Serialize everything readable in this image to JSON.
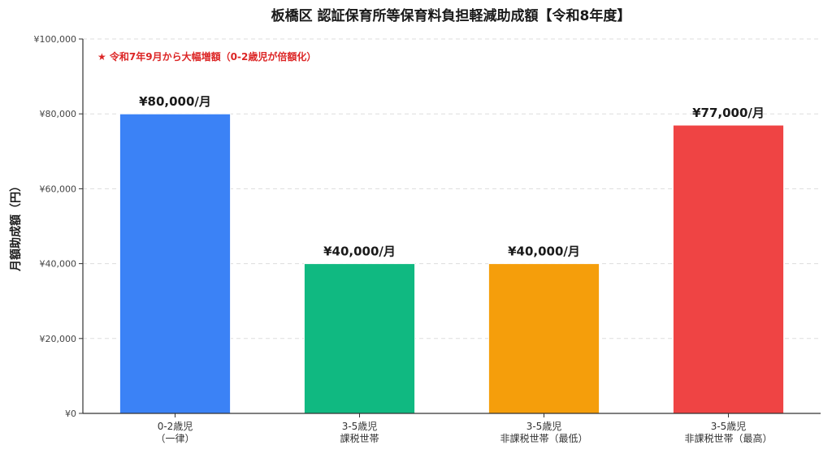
{
  "chart_data": {
    "type": "bar",
    "title": "板橋区 認証保育所等保育料負担軽減助成額【令和8年度】",
    "xlabel": "",
    "ylabel": "月額助成額（円）",
    "ylim": [
      0,
      100000
    ],
    "yticks": [
      0,
      20000,
      40000,
      60000,
      80000,
      100000
    ],
    "ytick_labels": [
      "¥0",
      "¥20,000",
      "¥40,000",
      "¥60,000",
      "¥80,000",
      "¥100,000"
    ],
    "grid": true,
    "categories": [
      [
        "0-2歳児",
        "（一律）"
      ],
      [
        "3-5歳児",
        "課税世帯"
      ],
      [
        "3-5歳児",
        "非課税世帯（最低）"
      ],
      [
        "3-5歳児",
        "非課税世帯（最高）"
      ]
    ],
    "values": [
      80000,
      40000,
      40000,
      77000
    ],
    "value_labels": [
      "¥80,000/月",
      "¥40,000/月",
      "¥40,000/月",
      "¥77,000/月"
    ],
    "colors": [
      "#3b82f6",
      "#10b981",
      "#f59e0b",
      "#ef4444"
    ],
    "annotation": {
      "text": "★ 令和7年9月から大幅増額（0-2歳児が倍額化）",
      "color": "#dc2626"
    }
  }
}
